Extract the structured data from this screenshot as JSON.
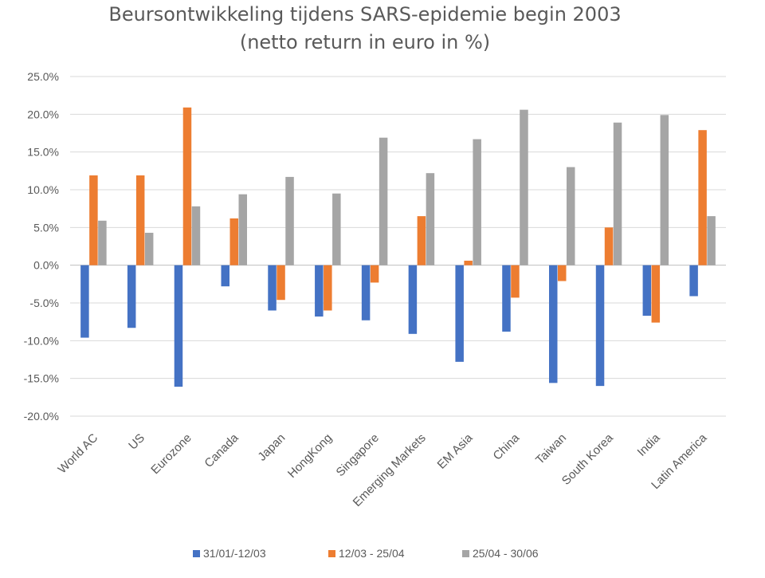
{
  "chart_data": {
    "type": "bar",
    "title": "Beursontwikkeling tijdens SARS-epidemie begin 2003",
    "subtitle": "(netto return in euro in %)",
    "xlabel": "",
    "ylabel": "",
    "ylim": [
      -20,
      25
    ],
    "y_ticks": [
      25,
      20,
      15,
      10,
      5,
      0,
      -5,
      -10,
      -15,
      -20
    ],
    "y_tick_labels": [
      "25.0%",
      "20.0%",
      "15.0%",
      "10.0%",
      "5.0%",
      "0.0%",
      "-5.0%",
      "-10.0%",
      "-15.0%",
      "-20.0%"
    ],
    "grid": true,
    "legend_position": "bottom",
    "categories": [
      "World AC",
      "US",
      "Eurozone",
      "Canada",
      "Japan",
      "HongKong",
      "Singapore",
      "Emerging Markets",
      "EM  Asia",
      "China",
      "Taiwan",
      "South Korea",
      "India",
      "Latin America"
    ],
    "series": [
      {
        "name": "31/01/-12/03",
        "color": "#4472c4",
        "values": [
          -9.6,
          -8.3,
          -16.1,
          -2.8,
          -6.0,
          -6.8,
          -7.3,
          -9.1,
          -12.8,
          -8.8,
          -15.6,
          -16.0,
          -6.7,
          -4.1
        ]
      },
      {
        "name": "12/03 - 25/04",
        "color": "#ed7d31",
        "values": [
          11.9,
          11.9,
          20.9,
          6.2,
          -4.6,
          -6.0,
          -2.3,
          6.5,
          0.6,
          -4.3,
          -2.1,
          5.0,
          -7.6,
          17.9
        ]
      },
      {
        "name": "25/04 - 30/06",
        "color": "#a5a5a5",
        "values": [
          5.9,
          4.3,
          7.8,
          9.4,
          11.7,
          9.5,
          16.9,
          12.2,
          16.7,
          20.6,
          13.0,
          18.9,
          19.9,
          6.5
        ]
      }
    ]
  }
}
